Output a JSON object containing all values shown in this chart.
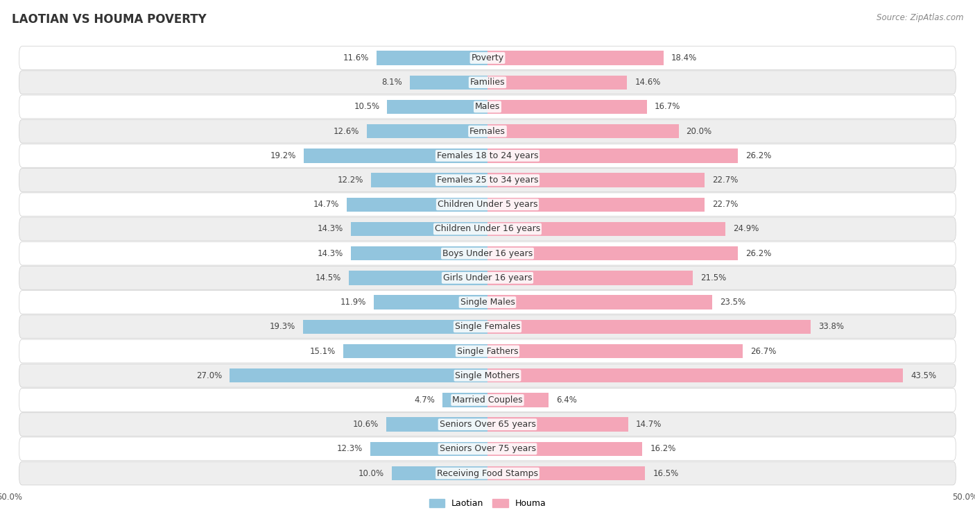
{
  "title": "LAOTIAN VS HOUMA POVERTY",
  "source": "Source: ZipAtlas.com",
  "categories": [
    "Poverty",
    "Families",
    "Males",
    "Females",
    "Females 18 to 24 years",
    "Females 25 to 34 years",
    "Children Under 5 years",
    "Children Under 16 years",
    "Boys Under 16 years",
    "Girls Under 16 years",
    "Single Males",
    "Single Females",
    "Single Fathers",
    "Single Mothers",
    "Married Couples",
    "Seniors Over 65 years",
    "Seniors Over 75 years",
    "Receiving Food Stamps"
  ],
  "laotian": [
    11.6,
    8.1,
    10.5,
    12.6,
    19.2,
    12.2,
    14.7,
    14.3,
    14.3,
    14.5,
    11.9,
    19.3,
    15.1,
    27.0,
    4.7,
    10.6,
    12.3,
    10.0
  ],
  "houma": [
    18.4,
    14.6,
    16.7,
    20.0,
    26.2,
    22.7,
    22.7,
    24.9,
    26.2,
    21.5,
    23.5,
    33.8,
    26.7,
    43.5,
    6.4,
    14.7,
    16.2,
    16.5
  ],
  "laotian_color": "#92c5de",
  "houma_color": "#f4a6b8",
  "axis_limit": 50.0,
  "bar_height": 0.58,
  "background_color": "#ffffff",
  "row_colors": [
    "#ffffff",
    "#eeeeee"
  ],
  "label_fontsize": 9.0,
  "value_fontsize": 8.5,
  "title_fontsize": 12,
  "source_fontsize": 8.5
}
